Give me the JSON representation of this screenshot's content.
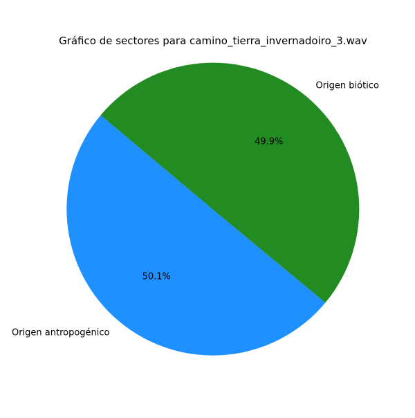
{
  "chart_data": {
    "type": "pie",
    "title": "Gráfico de sectores para camino_tierra_invernadoiro_3.wav",
    "slices": [
      {
        "label": "Origen antropogénico",
        "value": 50.1,
        "pct_label": "50.1%",
        "color": "#1e90ff"
      },
      {
        "label": "Origen biótico",
        "value": 49.9,
        "pct_label": "49.9%",
        "color": "#228b22"
      }
    ],
    "start_angle_deg": 140,
    "direction": "counterclockwise",
    "legend": "none"
  }
}
